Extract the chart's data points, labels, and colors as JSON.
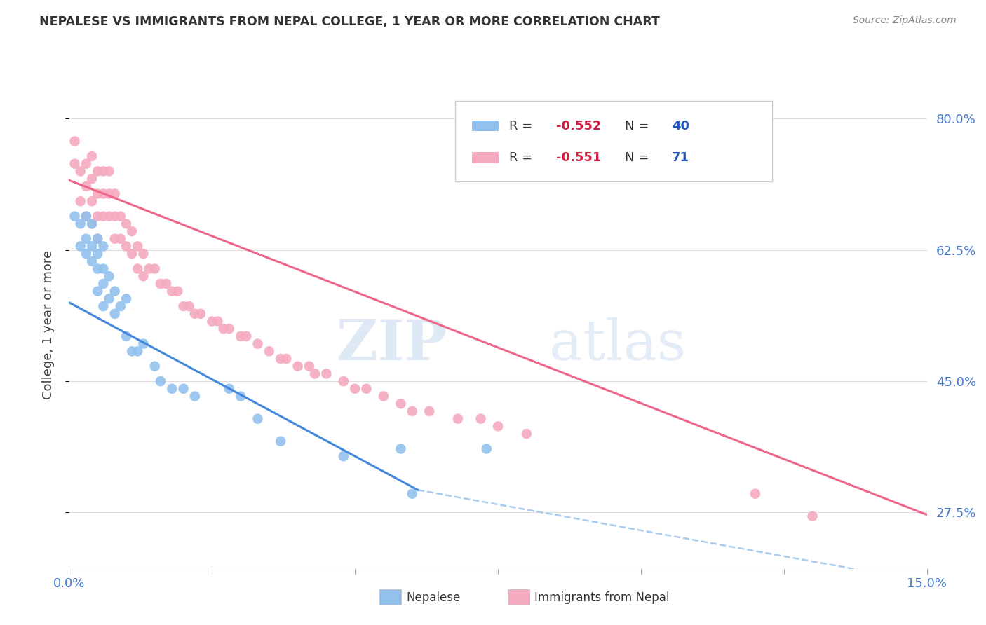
{
  "title": "NEPALESE VS IMMIGRANTS FROM NEPAL COLLEGE, 1 YEAR OR MORE CORRELATION CHART",
  "source": "Source: ZipAtlas.com",
  "ylabel": "College, 1 year or more",
  "xlim": [
    0.0,
    0.15
  ],
  "ylim": [
    0.2,
    0.85
  ],
  "yticks": [
    0.275,
    0.45,
    0.625,
    0.8
  ],
  "ytick_labels": [
    "27.5%",
    "45.0%",
    "62.5%",
    "80.0%"
  ],
  "xticks": [
    0.0,
    0.025,
    0.05,
    0.075,
    0.1,
    0.125,
    0.15
  ],
  "xtick_labels": [
    "0.0%",
    "",
    "",
    "",
    "",
    "",
    "15.0%"
  ],
  "blue_R": -0.552,
  "blue_N": 40,
  "pink_R": -0.551,
  "pink_N": 71,
  "blue_color": "#92C1EE",
  "pink_color": "#F5AABF",
  "blue_line_color": "#4488DD",
  "pink_line_color": "#EE6688",
  "dashed_line_color": "#AACCEE",
  "watermark_zip": "ZIP",
  "watermark_atlas": "atlas",
  "title_color": "#333333",
  "source_color": "#888888",
  "axis_color": "#4477CC",
  "legend_R_color": "#CC2244",
  "legend_N_color": "#2255BB",
  "blue_scatter_x": [
    0.001,
    0.002,
    0.002,
    0.003,
    0.003,
    0.003,
    0.004,
    0.004,
    0.004,
    0.005,
    0.005,
    0.005,
    0.005,
    0.006,
    0.006,
    0.006,
    0.006,
    0.007,
    0.007,
    0.008,
    0.008,
    0.009,
    0.01,
    0.01,
    0.011,
    0.012,
    0.013,
    0.015,
    0.016,
    0.018,
    0.02,
    0.022,
    0.028,
    0.03,
    0.033,
    0.037,
    0.048,
    0.058,
    0.06,
    0.073
  ],
  "blue_scatter_y": [
    0.67,
    0.63,
    0.66,
    0.62,
    0.64,
    0.67,
    0.61,
    0.63,
    0.66,
    0.57,
    0.6,
    0.62,
    0.64,
    0.55,
    0.58,
    0.6,
    0.63,
    0.56,
    0.59,
    0.54,
    0.57,
    0.55,
    0.51,
    0.56,
    0.49,
    0.49,
    0.5,
    0.47,
    0.45,
    0.44,
    0.44,
    0.43,
    0.44,
    0.43,
    0.4,
    0.37,
    0.35,
    0.36,
    0.3,
    0.36
  ],
  "pink_scatter_x": [
    0.001,
    0.001,
    0.002,
    0.002,
    0.003,
    0.003,
    0.003,
    0.004,
    0.004,
    0.004,
    0.004,
    0.005,
    0.005,
    0.005,
    0.005,
    0.006,
    0.006,
    0.006,
    0.007,
    0.007,
    0.007,
    0.008,
    0.008,
    0.008,
    0.009,
    0.009,
    0.01,
    0.01,
    0.011,
    0.011,
    0.012,
    0.012,
    0.013,
    0.013,
    0.014,
    0.015,
    0.016,
    0.017,
    0.018,
    0.019,
    0.02,
    0.021,
    0.022,
    0.023,
    0.025,
    0.026,
    0.027,
    0.028,
    0.03,
    0.031,
    0.033,
    0.035,
    0.037,
    0.038,
    0.04,
    0.042,
    0.043,
    0.045,
    0.048,
    0.05,
    0.052,
    0.055,
    0.058,
    0.06,
    0.063,
    0.068,
    0.072,
    0.075,
    0.08,
    0.12,
    0.13
  ],
  "pink_scatter_y": [
    0.74,
    0.77,
    0.69,
    0.73,
    0.67,
    0.71,
    0.74,
    0.66,
    0.69,
    0.72,
    0.75,
    0.64,
    0.67,
    0.7,
    0.73,
    0.67,
    0.7,
    0.73,
    0.67,
    0.7,
    0.73,
    0.64,
    0.67,
    0.7,
    0.64,
    0.67,
    0.63,
    0.66,
    0.62,
    0.65,
    0.6,
    0.63,
    0.59,
    0.62,
    0.6,
    0.6,
    0.58,
    0.58,
    0.57,
    0.57,
    0.55,
    0.55,
    0.54,
    0.54,
    0.53,
    0.53,
    0.52,
    0.52,
    0.51,
    0.51,
    0.5,
    0.49,
    0.48,
    0.48,
    0.47,
    0.47,
    0.46,
    0.46,
    0.45,
    0.44,
    0.44,
    0.43,
    0.42,
    0.41,
    0.41,
    0.4,
    0.4,
    0.39,
    0.38,
    0.3,
    0.27
  ],
  "blue_line_x": [
    0.0,
    0.061
  ],
  "blue_line_y": [
    0.555,
    0.305
  ],
  "pink_line_x": [
    0.0,
    0.15
  ],
  "pink_line_y": [
    0.718,
    0.272
  ],
  "dashed_line_x": [
    0.061,
    0.148
  ],
  "dashed_line_y": [
    0.305,
    0.185
  ],
  "background_color": "#FFFFFF",
  "grid_color": "#DDDDDD"
}
